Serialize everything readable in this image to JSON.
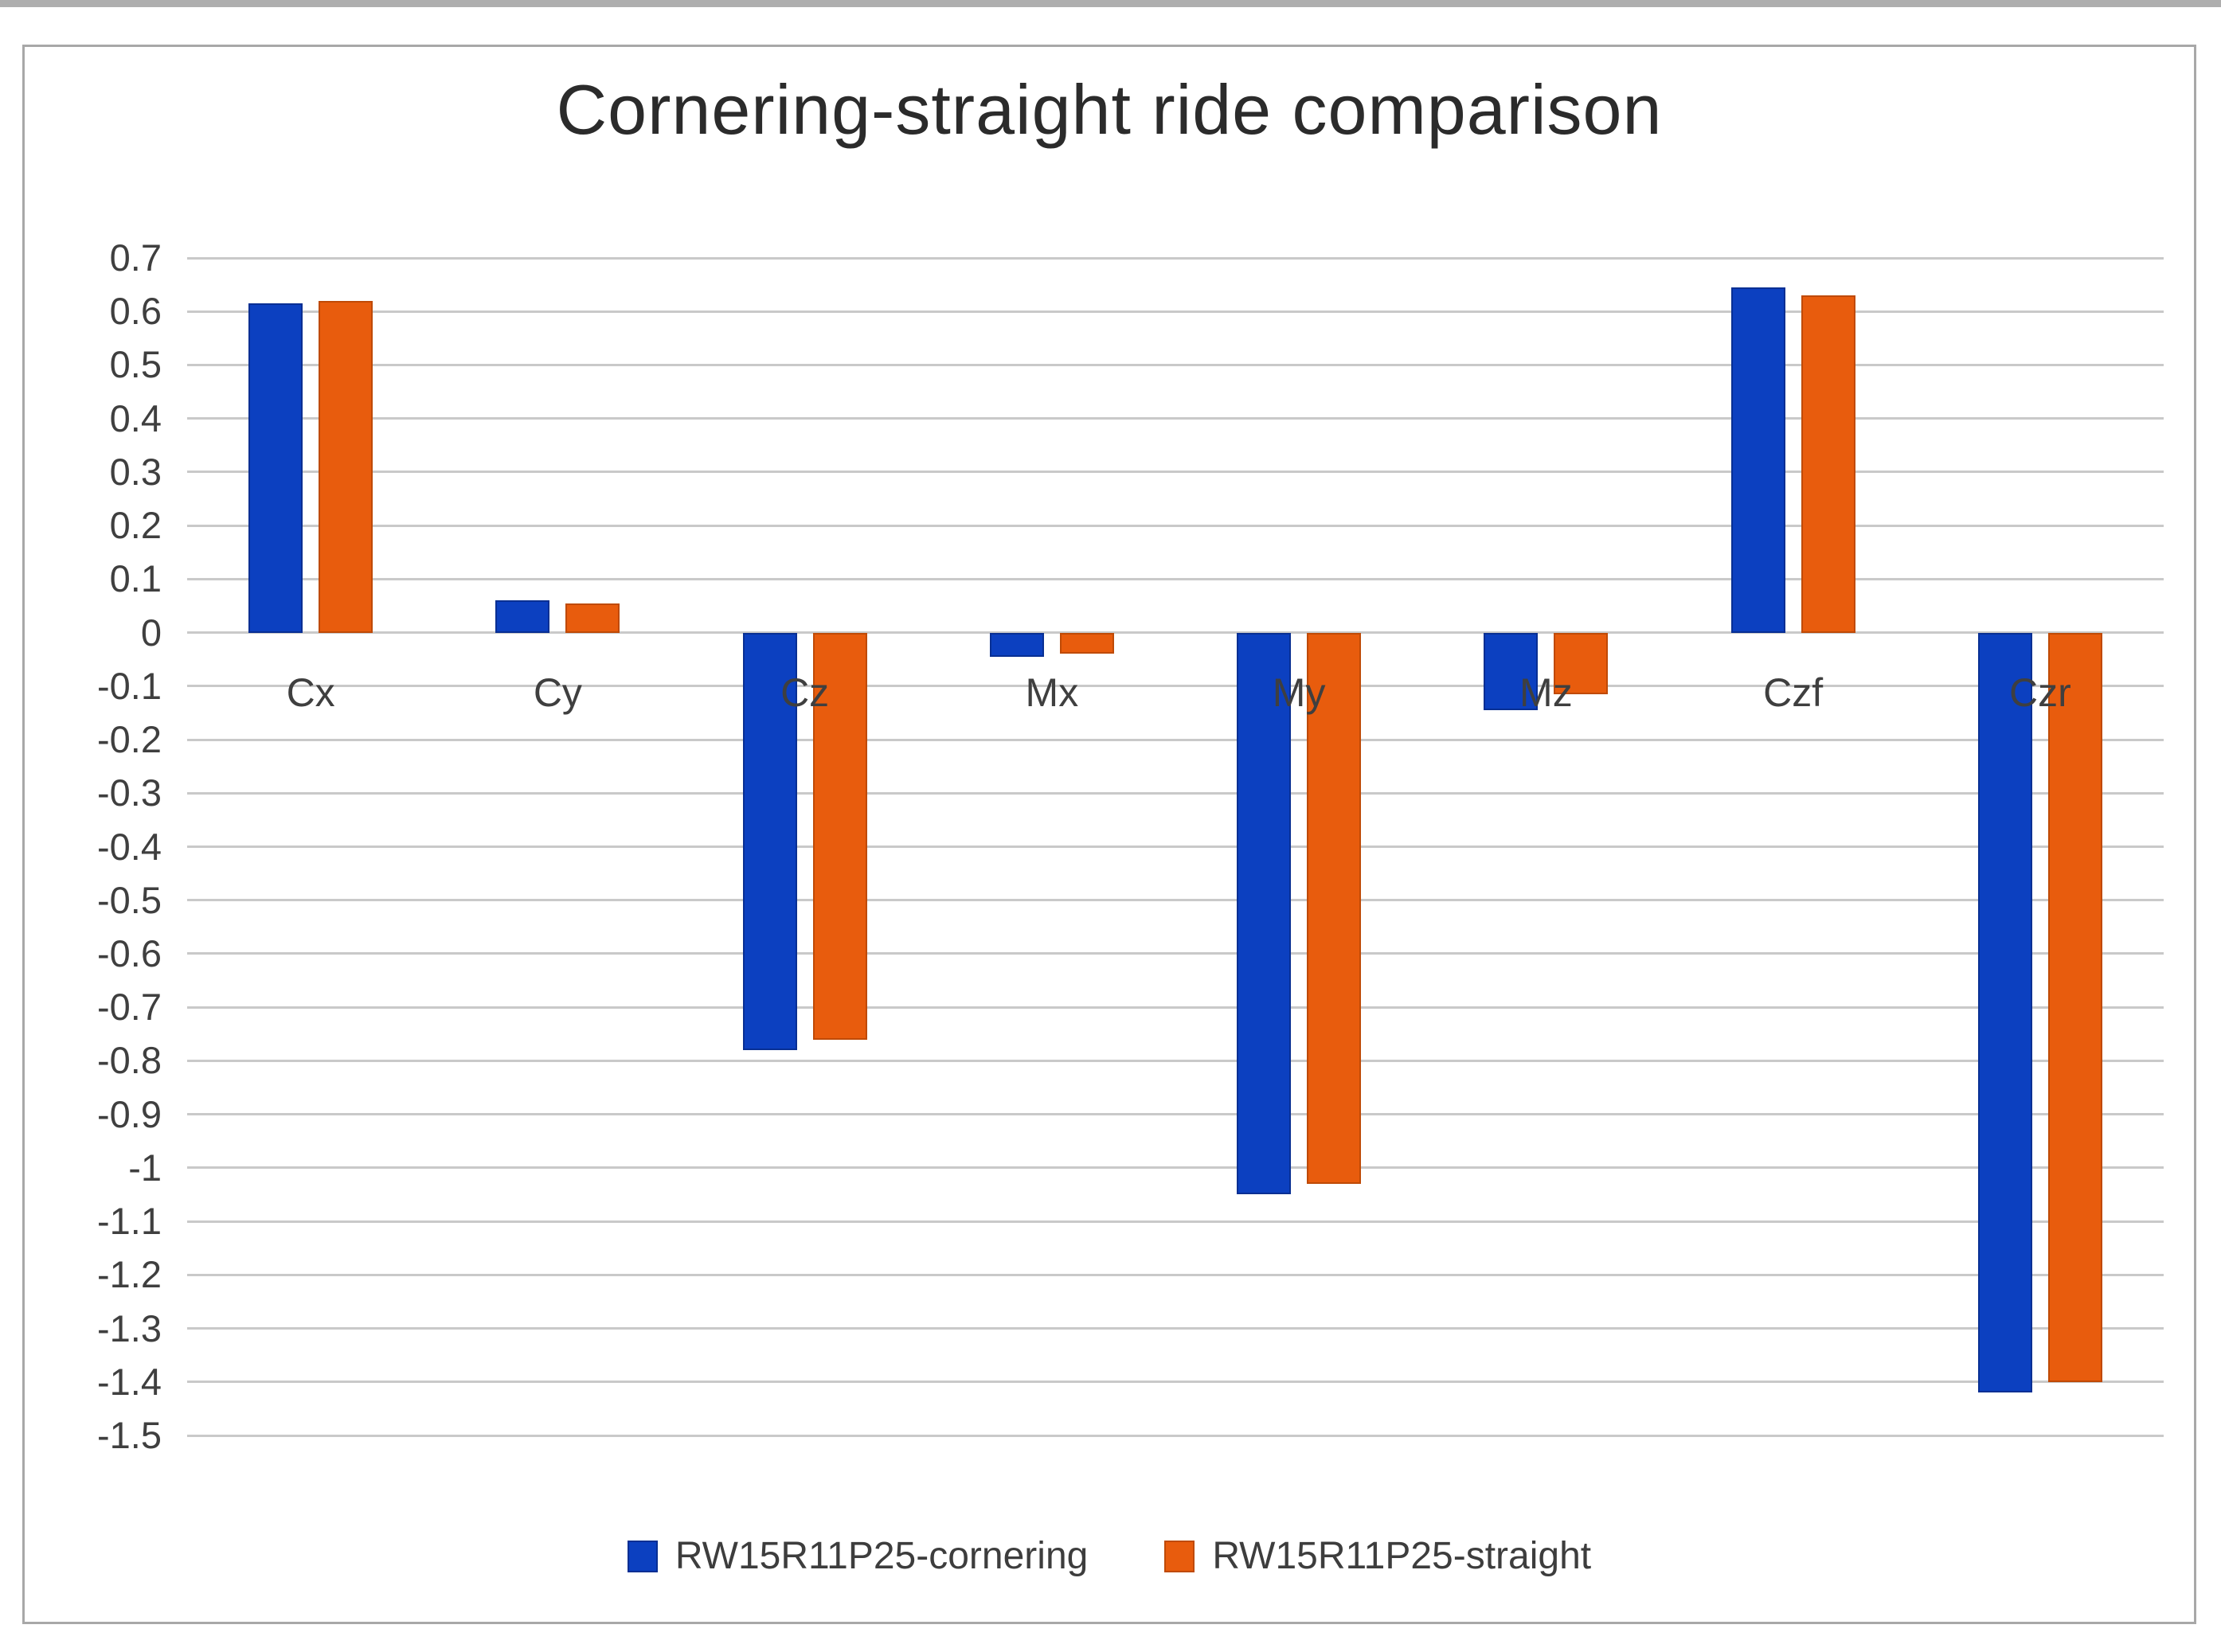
{
  "title": "Cornering-straight ride comparison",
  "chart_data": {
    "type": "bar",
    "title": "Cornering-straight ride comparison",
    "categories": [
      "Cx",
      "Cy",
      "Cz",
      "Mx",
      "My",
      "Mz",
      "Czf",
      "Czr"
    ],
    "series": [
      {
        "name": "RW15R11P25-cornering",
        "color": "#0c40c0",
        "border_color": "#082f93",
        "values": [
          0.615,
          0.06,
          -0.78,
          -0.045,
          -1.05,
          -0.145,
          0.645,
          -1.42
        ]
      },
      {
        "name": "RW15R11P25-straight",
        "color": "#e85c0d",
        "border_color": "#bf4a06",
        "values": [
          0.62,
          0.055,
          -0.76,
          -0.04,
          -1.03,
          -0.115,
          0.63,
          -1.4
        ]
      }
    ],
    "ylim": [
      -1.5,
      0.7
    ],
    "ytick_step": 0.1,
    "yticks": [
      "0.7",
      "0.6",
      "0.5",
      "0.4",
      "0.3",
      "0.2",
      "0.1",
      "0",
      "-0.1",
      "-0.2",
      "-0.3",
      "-0.4",
      "-0.5",
      "-0.6",
      "-0.7",
      "-0.8",
      "-0.9",
      "-1",
      "-1.1",
      "-1.2",
      "-1.3",
      "-1.4",
      "-1.5"
    ],
    "grid": true,
    "legend_position": "bottom",
    "colors": {
      "gridline": "#c9c9c9",
      "axis_text": "#3f3f3f",
      "title_text": "#2b2b2b",
      "figure_border": "#a8a8a8"
    }
  }
}
